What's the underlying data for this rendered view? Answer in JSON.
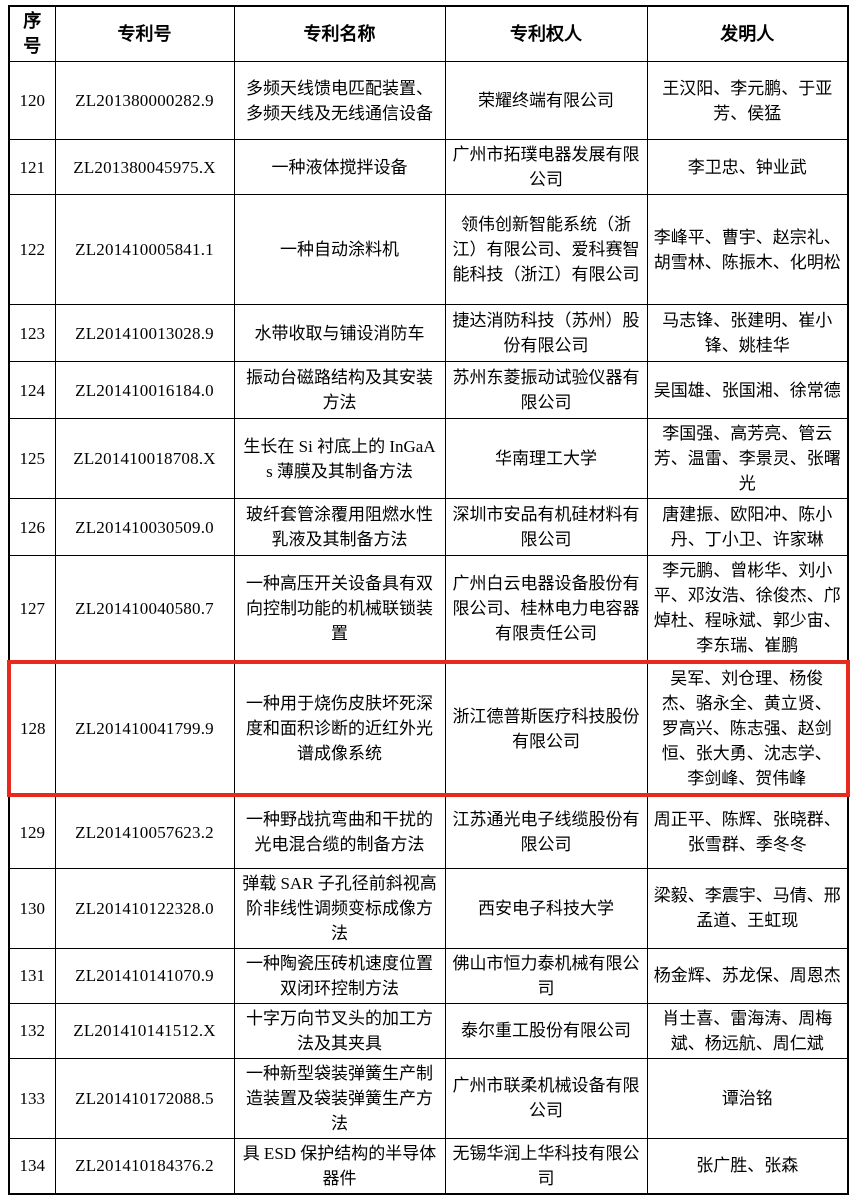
{
  "table": {
    "headers": [
      "序号",
      "专利号",
      "专利名称",
      "专利权人",
      "发明人"
    ],
    "highlight_color": "#e8291d",
    "highlighted_row_no": "128",
    "rows": [
      {
        "no": "120",
        "patent_no": "ZL201380000282.9",
        "name": "多频天线馈电匹配装置、多频天线及无线通信设备",
        "owner": "荣耀终端有限公司",
        "inventors": "王汉阳、李元鹏、于亚芳、侯猛"
      },
      {
        "no": "121",
        "patent_no": "ZL201380045975.X",
        "name": "一种液体搅拌设备",
        "owner": "广州市拓璞电器发展有限公司",
        "inventors": "李卫忠、钟业武"
      },
      {
        "no": "122",
        "patent_no": "ZL201410005841.1",
        "name": "一种自动涂料机",
        "owner": "领伟创新智能系统（浙江）有限公司、爱科赛智能科技（浙江）有限公司",
        "inventors": "李峰平、曹宇、赵宗礼、胡雪林、陈振木、化明松"
      },
      {
        "no": "123",
        "patent_no": "ZL201410013028.9",
        "name": "水带收取与铺设消防车",
        "owner": "捷达消防科技（苏州）股份有限公司",
        "inventors": "马志锋、张建明、崔小锋、姚桂华"
      },
      {
        "no": "124",
        "patent_no": "ZL201410016184.0",
        "name": "振动台磁路结构及其安装方法",
        "owner": "苏州东菱振动试验仪器有限公司",
        "inventors": "吴国雄、张国湘、徐常德"
      },
      {
        "no": "125",
        "patent_no": "ZL201410018708.X",
        "name": "生长在 Si 衬底上的 InGaAs 薄膜及其制备方法",
        "owner": "华南理工大学",
        "inventors": "李国强、高芳亮、管云芳、温雷、李景灵、张曙光"
      },
      {
        "no": "126",
        "patent_no": "ZL201410030509.0",
        "name": "玻纤套管涂覆用阻燃水性乳液及其制备方法",
        "owner": "深圳市安品有机硅材料有限公司",
        "inventors": "唐建振、欧阳冲、陈小丹、丁小卫、许家琳"
      },
      {
        "no": "127",
        "patent_no": "ZL201410040580.7",
        "name": "一种高压开关设备具有双向控制功能的机械联锁装置",
        "owner": "广州白云电器设备股份有限公司、桂林电力电容器有限责任公司",
        "inventors": "李元鹏、曾彬华、刘小平、邓汝浩、徐俊杰、邝焯杜、程咏斌、郭少宙、李东瑞、崔鹏"
      },
      {
        "no": "128",
        "patent_no": "ZL201410041799.9",
        "name": "一种用于烧伤皮肤坏死深度和面积诊断的近红外光谱成像系统",
        "owner": "浙江德普斯医疗科技股份有限公司",
        "inventors": "吴军、刘仓理、杨俊杰、骆永全、黄立贤、罗高兴、陈志强、赵剑恒、张大勇、沈志学、李剑峰、贺伟峰"
      },
      {
        "no": "129",
        "patent_no": "ZL201410057623.2",
        "name": "一种野战抗弯曲和干扰的光电混合缆的制备方法",
        "owner": "江苏通光电子线缆股份有限公司",
        "inventors": "周正平、陈辉、张晓群、张雪群、季冬冬"
      },
      {
        "no": "130",
        "patent_no": "ZL201410122328.0",
        "name": "弹载 SAR 子孔径前斜视高阶非线性调频变标成像方法",
        "owner": "西安电子科技大学",
        "inventors": "梁毅、李震宇、马倩、邢孟道、王虹现"
      },
      {
        "no": "131",
        "patent_no": "ZL201410141070.9",
        "name": "一种陶瓷压砖机速度位置双闭环控制方法",
        "owner": "佛山市恒力泰机械有限公司",
        "inventors": "杨金辉、苏龙保、周恩杰"
      },
      {
        "no": "132",
        "patent_no": "ZL201410141512.X",
        "name": "十字万向节叉头的加工方法及其夹具",
        "owner": "泰尔重工股份有限公司",
        "inventors": "肖士喜、雷海涛、周梅斌、杨远航、周仁斌"
      },
      {
        "no": "133",
        "patent_no": "ZL201410172088.5",
        "name": "一种新型袋装弹簧生产制造装置及袋装弹簧生产方法",
        "owner": "广州市联柔机械设备有限公司",
        "inventors": "谭治铭"
      },
      {
        "no": "134",
        "patent_no": "ZL201410184376.2",
        "name": "具 ESD 保护结构的半导体器件",
        "owner": "无锡华润上华科技有限公司",
        "inventors": "张广胜、张森"
      }
    ]
  }
}
